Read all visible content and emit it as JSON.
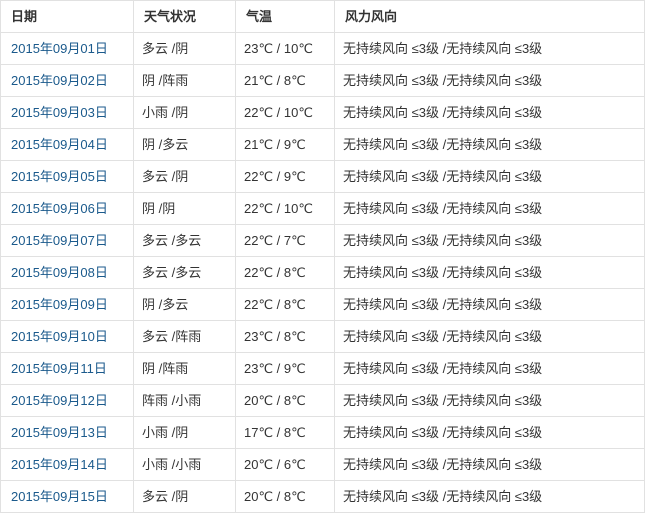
{
  "table": {
    "columns": [
      {
        "id": "date",
        "label": "日期"
      },
      {
        "id": "weather",
        "label": "天气状况"
      },
      {
        "id": "temp",
        "label": "气温"
      },
      {
        "id": "wind",
        "label": "风力风向"
      }
    ],
    "rows": [
      {
        "date": "2015年09月01日",
        "weather": "多云 /阴",
        "temp": "23℃ / 10℃",
        "wind": "无持续风向 ≤3级 /无持续风向 ≤3级"
      },
      {
        "date": "2015年09月02日",
        "weather": "阴 /阵雨",
        "temp": "21℃ / 8℃",
        "wind": "无持续风向 ≤3级 /无持续风向 ≤3级"
      },
      {
        "date": "2015年09月03日",
        "weather": "小雨 /阴",
        "temp": "22℃ / 10℃",
        "wind": "无持续风向 ≤3级 /无持续风向 ≤3级"
      },
      {
        "date": "2015年09月04日",
        "weather": "阴 /多云",
        "temp": "21℃ / 9℃",
        "wind": "无持续风向 ≤3级 /无持续风向 ≤3级"
      },
      {
        "date": "2015年09月05日",
        "weather": "多云 /阴",
        "temp": "22℃ / 9℃",
        "wind": "无持续风向 ≤3级 /无持续风向 ≤3级"
      },
      {
        "date": "2015年09月06日",
        "weather": "阴 /阴",
        "temp": "22℃ / 10℃",
        "wind": "无持续风向 ≤3级 /无持续风向 ≤3级"
      },
      {
        "date": "2015年09月07日",
        "weather": "多云 /多云",
        "temp": "22℃ / 7℃",
        "wind": "无持续风向 ≤3级 /无持续风向 ≤3级"
      },
      {
        "date": "2015年09月08日",
        "weather": "多云 /多云",
        "temp": "22℃ / 8℃",
        "wind": "无持续风向 ≤3级 /无持续风向 ≤3级"
      },
      {
        "date": "2015年09月09日",
        "weather": "阴 /多云",
        "temp": "22℃ / 8℃",
        "wind": "无持续风向 ≤3级 /无持续风向 ≤3级"
      },
      {
        "date": "2015年09月10日",
        "weather": "多云 /阵雨",
        "temp": "23℃ / 8℃",
        "wind": "无持续风向 ≤3级 /无持续风向 ≤3级"
      },
      {
        "date": "2015年09月11日",
        "weather": "阴 /阵雨",
        "temp": "23℃ / 9℃",
        "wind": "无持续风向 ≤3级 /无持续风向 ≤3级"
      },
      {
        "date": "2015年09月12日",
        "weather": "阵雨 /小雨",
        "temp": "20℃ / 8℃",
        "wind": "无持续风向 ≤3级 /无持续风向 ≤3级"
      },
      {
        "date": "2015年09月13日",
        "weather": "小雨 /阴",
        "temp": "17℃ / 8℃",
        "wind": "无持续风向 ≤3级 /无持续风向 ≤3级"
      },
      {
        "date": "2015年09月14日",
        "weather": "小雨 /小雨",
        "temp": "20℃ / 6℃",
        "wind": "无持续风向 ≤3级 /无持续风向 ≤3级"
      },
      {
        "date": "2015年09月15日",
        "weather": "多云 /阴",
        "temp": "20℃ / 8℃",
        "wind": "无持续风向 ≤3级 /无持续风向 ≤3级"
      }
    ]
  },
  "colors": {
    "link": "#1b5a8c",
    "header_text": "#333333",
    "body_text": "#333333",
    "border": "#e1e1e1",
    "background": "#ffffff"
  }
}
